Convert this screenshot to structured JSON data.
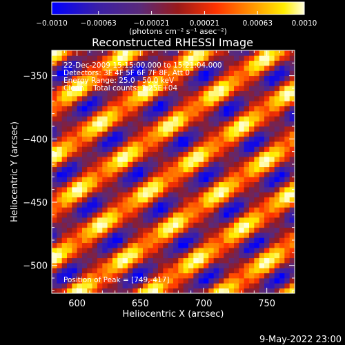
{
  "chart_data": {
    "type": "heatmap",
    "title": "Reconstructed RHESSI Image",
    "xlabel": "Heliocentric X (arcsec)",
    "ylabel": "Heliocentric Y (arcsec)",
    "xlim": [
      580,
      772
    ],
    "ylim": [
      -522,
      -330
    ],
    "xticks": [
      600,
      650,
      700,
      750
    ],
    "yticks": [
      -350,
      -400,
      -450,
      -500
    ],
    "colorbar": {
      "range": [
        -0.001,
        0.001
      ],
      "tick_values": [
        -0.001,
        -0.00063,
        -0.00021,
        0.00021,
        0.00063,
        0.001
      ],
      "tick_labels": [
        "-0.0010",
        "-0.00063",
        "-0.00021",
        "0.00021",
        "0.00063",
        "0.0010"
      ],
      "label": "(photons cm⁻² s⁻¹ asec⁻²)",
      "colormap": [
        "#0000ff",
        "#3a1fa8",
        "#5a2a7a",
        "#9a1a1a",
        "#ff3300",
        "#ff9900",
        "#ffee00",
        "#ffffdd"
      ]
    },
    "annotations": {
      "time": "22-Dec-2009 15:15:00.000 to 15:21:04.000",
      "detectors": "Detectors: 3F 4F 5F 6F 7F 8F, Att 0",
      "energy": "Energy Range: 25.0 - 50.0 keV",
      "method": "Clean    Total counts: 3.25E+04",
      "peak": "Position of Peak = [749,-417]"
    },
    "peak": {
      "x": 749,
      "y": -417
    },
    "pattern": {
      "description_kind": "diagonal fringe stripes",
      "stripe_spacing_arcsec": 33,
      "stripe_angle_deg": 35,
      "value_range": [
        -0.0009,
        0.001
      ]
    },
    "footer_date": "9-May-2022 23:00"
  }
}
